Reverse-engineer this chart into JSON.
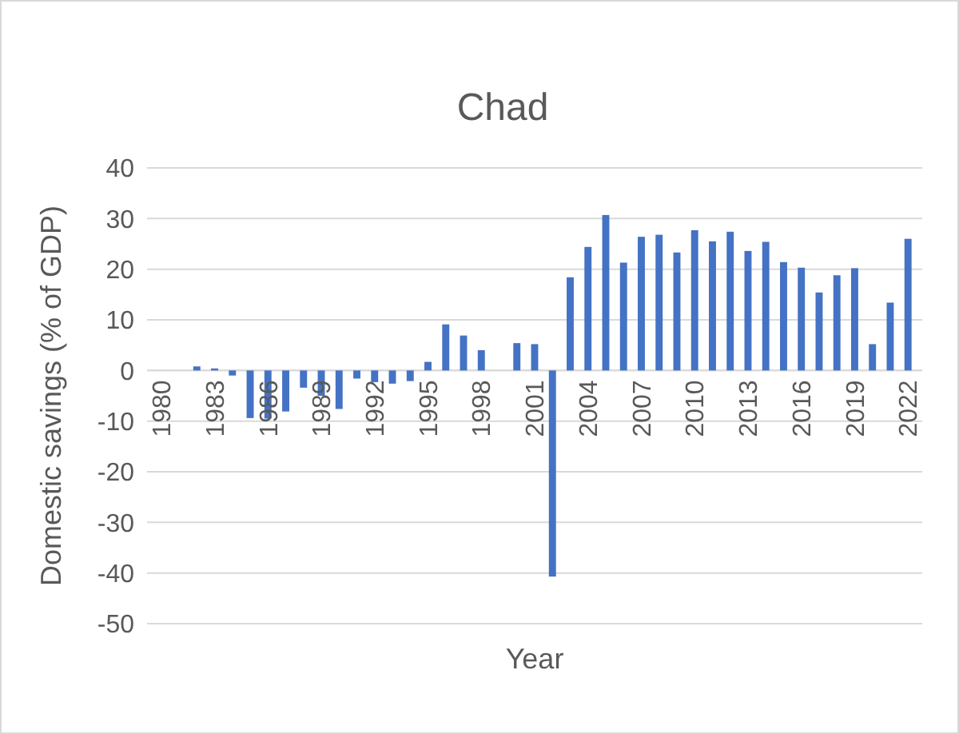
{
  "chart_data": {
    "type": "bar",
    "title": "Chad",
    "xlabel": "Year",
    "ylabel": "Domestic savings (% of GDP)",
    "categories": [
      "1980",
      null,
      null,
      "1983",
      null,
      null,
      "1986",
      null,
      null,
      "1989",
      null,
      null,
      "1992",
      null,
      null,
      "1995",
      null,
      null,
      "1998",
      null,
      null,
      "2001",
      null,
      null,
      "2004",
      null,
      null,
      "2007",
      null,
      null,
      "2010",
      null,
      null,
      "2013",
      null,
      null,
      "2016",
      null,
      null,
      "2019",
      null,
      null,
      "2022"
    ],
    "values": [
      null,
      null,
      0.8,
      0.4,
      -1,
      -9.4,
      -9.5,
      -8.1,
      -3.4,
      -5,
      -7.6,
      -1.6,
      -2.3,
      -2.6,
      -2.1,
      1.7,
      9.1,
      6.9,
      4.0,
      null,
      5.4,
      5.2,
      -40.7,
      18.4,
      24.4,
      30.7,
      21.3,
      26.4,
      26.8,
      23.3,
      27.7,
      25.5,
      27.4,
      23.6,
      25.4,
      21.4,
      20.3,
      15.4,
      18.8,
      20.2,
      5.2,
      13.4,
      26.0
    ],
    "color": "#4472c4",
    "ylim": [
      -50,
      40
    ],
    "yticks": [
      -50,
      -40,
      -30,
      -20,
      -10,
      0,
      10,
      20,
      30,
      40
    ],
    "grid": "y"
  }
}
